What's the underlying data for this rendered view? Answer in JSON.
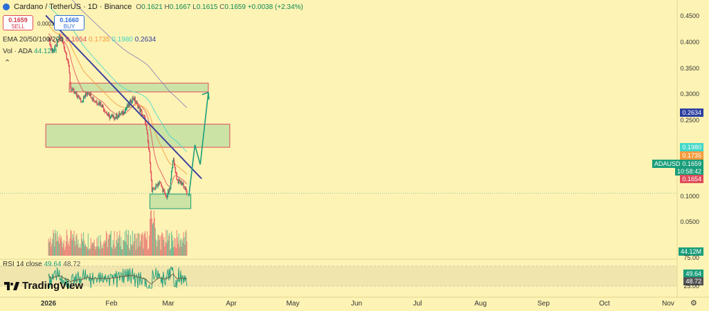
{
  "header": {
    "symbol": "Cardano / TetherUS · 1D · Binance",
    "ohlc": [
      {
        "k": "O",
        "v": "0.1621"
      },
      {
        "k": "H",
        "v": "0.1667"
      },
      {
        "k": "L",
        "v": "0.1615"
      },
      {
        "k": "C",
        "v": "0.1659"
      },
      {
        "k": "",
        "v": "+0.0038 (+2.34%)"
      }
    ],
    "sell_price": "0.1659",
    "sell_label": "SELL",
    "buy_price": "0.1660",
    "buy_label": "BUY",
    "spread": "0.0001"
  },
  "indicators": {
    "ema_label": "EMA 20/50/100/200",
    "ema_values": [
      "0.1654",
      "0.1735",
      "0.1980",
      "0.2634"
    ],
    "vol_label": "Vol · ADA",
    "vol_value": "44.12M",
    "rsi_label": "RSI 14 close",
    "rsi_values": [
      "49.64",
      "48.72"
    ]
  },
  "brand": "TradingView",
  "colors": {
    "background": "#fdf3b4",
    "up": "#1a9e7a",
    "down": "#e04b5a",
    "ema20": "#e04b5a",
    "ema50": "#f59b3b",
    "ema100": "#41d7c8",
    "ema200": "#8a7fb8",
    "trendline": "#3b3f9e",
    "zone_fill": "#b9dda0",
    "zone_border": "#e04b5a",
    "projection": "#1a9e7a"
  },
  "price_axis": {
    "labels": [
      "0.4500",
      "0.4000",
      "0.3500",
      "0.3000",
      "0.2500",
      "0.1000",
      "0.0500"
    ]
  },
  "price_tags": {
    "ema200": "0.2634",
    "ema100": "0.1980",
    "ema50": "0.1735",
    "last": "0.1659",
    "countdown": "10:58:42",
    "ema20": "0.1654",
    "symbol_tag": "ADAUSDT",
    "vol": "44.12M",
    "rsi75": "75.00",
    "rsi25": "25.00",
    "rsi": "49.64",
    "rsi_ma": "48.72"
  },
  "time_axis": {
    "labels": [
      "2026",
      "Feb",
      "Mar",
      "Apr",
      "May",
      "Jun",
      "Jul",
      "Aug",
      "Sep",
      "Oct",
      "Nov"
    ]
  },
  "chart_data": {
    "type": "candlestick",
    "symbol": "ADAUSDT",
    "timeframe": "1D",
    "x_labels": [
      "2026",
      "Feb",
      "Mar",
      "Apr",
      "May",
      "Jun",
      "Jul",
      "Aug",
      "Sep",
      "Oct",
      "Nov"
    ],
    "price_anchors": [
      {
        "t": "2026-01-01",
        "p": 0.4
      },
      {
        "t": "2026-01-06",
        "p": 0.37
      },
      {
        "t": "2026-01-12",
        "p": 0.38
      },
      {
        "t": "2026-01-18",
        "p": 0.405
      },
      {
        "t": "2026-01-24",
        "p": 0.38
      },
      {
        "t": "2026-01-30",
        "p": 0.35
      },
      {
        "t": "2026-02-03",
        "p": 0.3
      },
      {
        "t": "2026-02-10",
        "p": 0.29
      },
      {
        "t": "2026-02-20",
        "p": 0.28
      },
      {
        "t": "2026-03-01",
        "p": 0.295
      },
      {
        "t": "2026-03-10",
        "p": 0.28
      },
      {
        "t": "2026-03-20",
        "p": 0.275
      },
      {
        "t": "2026-04-01",
        "p": 0.255
      },
      {
        "t": "2026-04-10",
        "p": 0.255
      },
      {
        "t": "2026-04-20",
        "p": 0.26
      },
      {
        "t": "2026-04-30",
        "p": 0.272
      },
      {
        "t": "2026-05-07",
        "p": 0.285
      },
      {
        "t": "2026-05-15",
        "p": 0.27
      },
      {
        "t": "2026-05-25",
        "p": 0.25
      },
      {
        "t": "2026-06-01",
        "p": 0.2
      },
      {
        "t": "2026-06-04",
        "p": 0.167
      },
      {
        "t": "2026-06-15",
        "p": 0.177
      },
      {
        "t": "2026-06-25",
        "p": 0.162
      },
      {
        "t": "2026-07-01",
        "p": 0.17
      },
      {
        "t": "2026-07-05",
        "p": 0.202
      },
      {
        "t": "2026-07-12",
        "p": 0.178
      },
      {
        "t": "2026-07-20",
        "p": 0.175
      },
      {
        "t": "2026-07-26",
        "p": 0.1659
      }
    ],
    "zones": [
      {
        "from": "2026-02-01",
        "to": "2026-08-27",
        "low": 0.294,
        "high": 0.309
      },
      {
        "from": "2025-12-28",
        "to": "2026-09-28",
        "low": 0.215,
        "high": 0.245
      },
      {
        "from": "2026-06-01",
        "to": "2026-08-01",
        "low": 0.152,
        "high": 0.165
      }
    ],
    "trendline": [
      {
        "t": "2025-12-28",
        "p": 0.453
      },
      {
        "t": "2026-08-17",
        "p": 0.18
      }
    ],
    "projection": [
      {
        "t": "2026-07-29",
        "p": 0.163
      },
      {
        "t": "2026-08-07",
        "p": 0.218
      },
      {
        "t": "2026-08-15",
        "p": 0.195
      },
      {
        "t": "2026-08-27",
        "p": 0.293
      }
    ],
    "ema_last": {
      "ema20": 0.1654,
      "ema50": 0.1735,
      "ema100": 0.198,
      "ema200": 0.2634
    },
    "y_axis": {
      "labels": [
        "0.4500",
        "0.4000",
        "0.3500",
        "0.3000",
        "0.2500",
        "0.1000",
        "0.0500"
      ]
    },
    "rsi": {
      "last": 49.64,
      "ma": 48.72,
      "bands": [
        25,
        75
      ]
    },
    "volume_last": "44.12M"
  }
}
